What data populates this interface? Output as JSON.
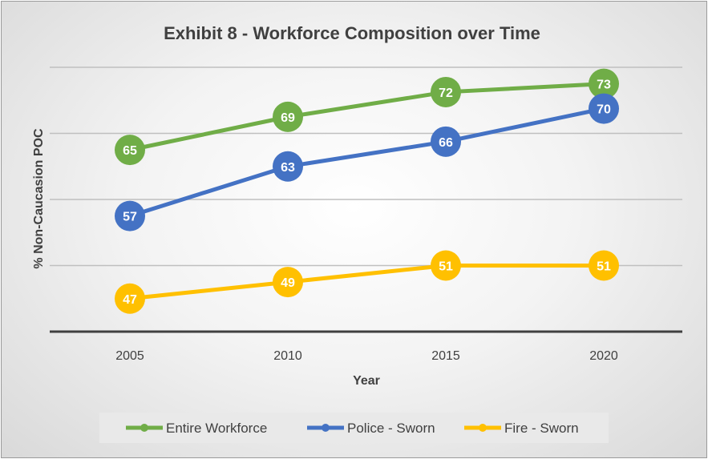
{
  "chart_data": {
    "type": "line",
    "title": "Exhibit 8 - Workforce Composition over Time",
    "xlabel": "Year",
    "ylabel": "% Non-Caucasion POC",
    "categories": [
      "2005",
      "2010",
      "2015",
      "2020"
    ],
    "ylim": [
      43,
      75
    ],
    "gridlines": [
      51,
      59,
      67,
      75
    ],
    "legend_position": "bottom",
    "series": [
      {
        "name": "Entire Workforce",
        "values": [
          65,
          69,
          72,
          73
        ],
        "color": "#70ad47"
      },
      {
        "name": "Police - Sworn",
        "values": [
          57,
          63,
          66,
          70
        ],
        "color": "#4472c4"
      },
      {
        "name": "Fire - Sworn",
        "values": [
          47,
          49,
          51,
          51
        ],
        "color": "#ffc000"
      }
    ]
  }
}
